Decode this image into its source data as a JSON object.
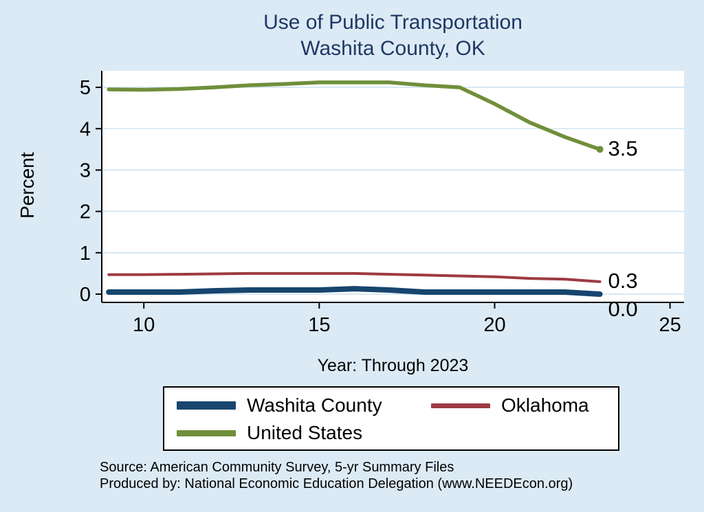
{
  "title": {
    "line1": "Use of Public Transportation",
    "line2": "Washita County, OK"
  },
  "axes": {
    "ylabel": "Percent",
    "xlabel": "Year: Through 2023",
    "yticks": [
      0,
      1,
      2,
      3,
      4,
      5
    ],
    "xticks": [
      10,
      15,
      20,
      25
    ]
  },
  "chart_data": {
    "type": "line",
    "title": "Use of Public Transportation — Washita County, OK",
    "xlabel": "Year: Through 2023",
    "ylabel": "Percent",
    "x": [
      9,
      10,
      11,
      12,
      13,
      14,
      15,
      16,
      17,
      18,
      19,
      20,
      21,
      22,
      23
    ],
    "xlim": [
      8.8,
      25.4
    ],
    "ylim": [
      -0.2,
      5.4
    ],
    "grid": "horizontal",
    "legend_position": "bottom",
    "series": [
      {
        "name": "Washita County",
        "color": "#17456e",
        "end_label": "0.0",
        "values": [
          0.05,
          0.05,
          0.05,
          0.08,
          0.1,
          0.1,
          0.1,
          0.13,
          0.1,
          0.05,
          0.05,
          0.05,
          0.05,
          0.05,
          0.0
        ]
      },
      {
        "name": "Oklahoma",
        "color": "#9d3a42",
        "end_label": "0.3",
        "values": [
          0.47,
          0.47,
          0.48,
          0.49,
          0.5,
          0.5,
          0.5,
          0.5,
          0.48,
          0.46,
          0.44,
          0.42,
          0.38,
          0.36,
          0.3
        ]
      },
      {
        "name": "United States",
        "color": "#6f8f3a",
        "end_label": "3.5",
        "values": [
          4.95,
          4.94,
          4.96,
          5.0,
          5.05,
          5.08,
          5.12,
          5.12,
          5.12,
          5.05,
          5.0,
          4.6,
          4.15,
          3.8,
          3.5
        ]
      }
    ]
  },
  "legend": {
    "items": [
      {
        "label": "Washita County",
        "color": "#17456e"
      },
      {
        "label": "Oklahoma",
        "color": "#9d3a42"
      },
      {
        "label": "United States",
        "color": "#6f8f3a"
      }
    ]
  },
  "footer": {
    "line1": "Source: American Community Survey, 5-yr Summary Files",
    "line2": "Produced by: National Economic Education Delegation (www.NEEDEcon.org)"
  },
  "colors": {
    "background": "#dceaf5",
    "plot_background": "#ffffff",
    "gridline": "#cfe4f0",
    "axis": "#000000",
    "title": "#1f3864"
  }
}
